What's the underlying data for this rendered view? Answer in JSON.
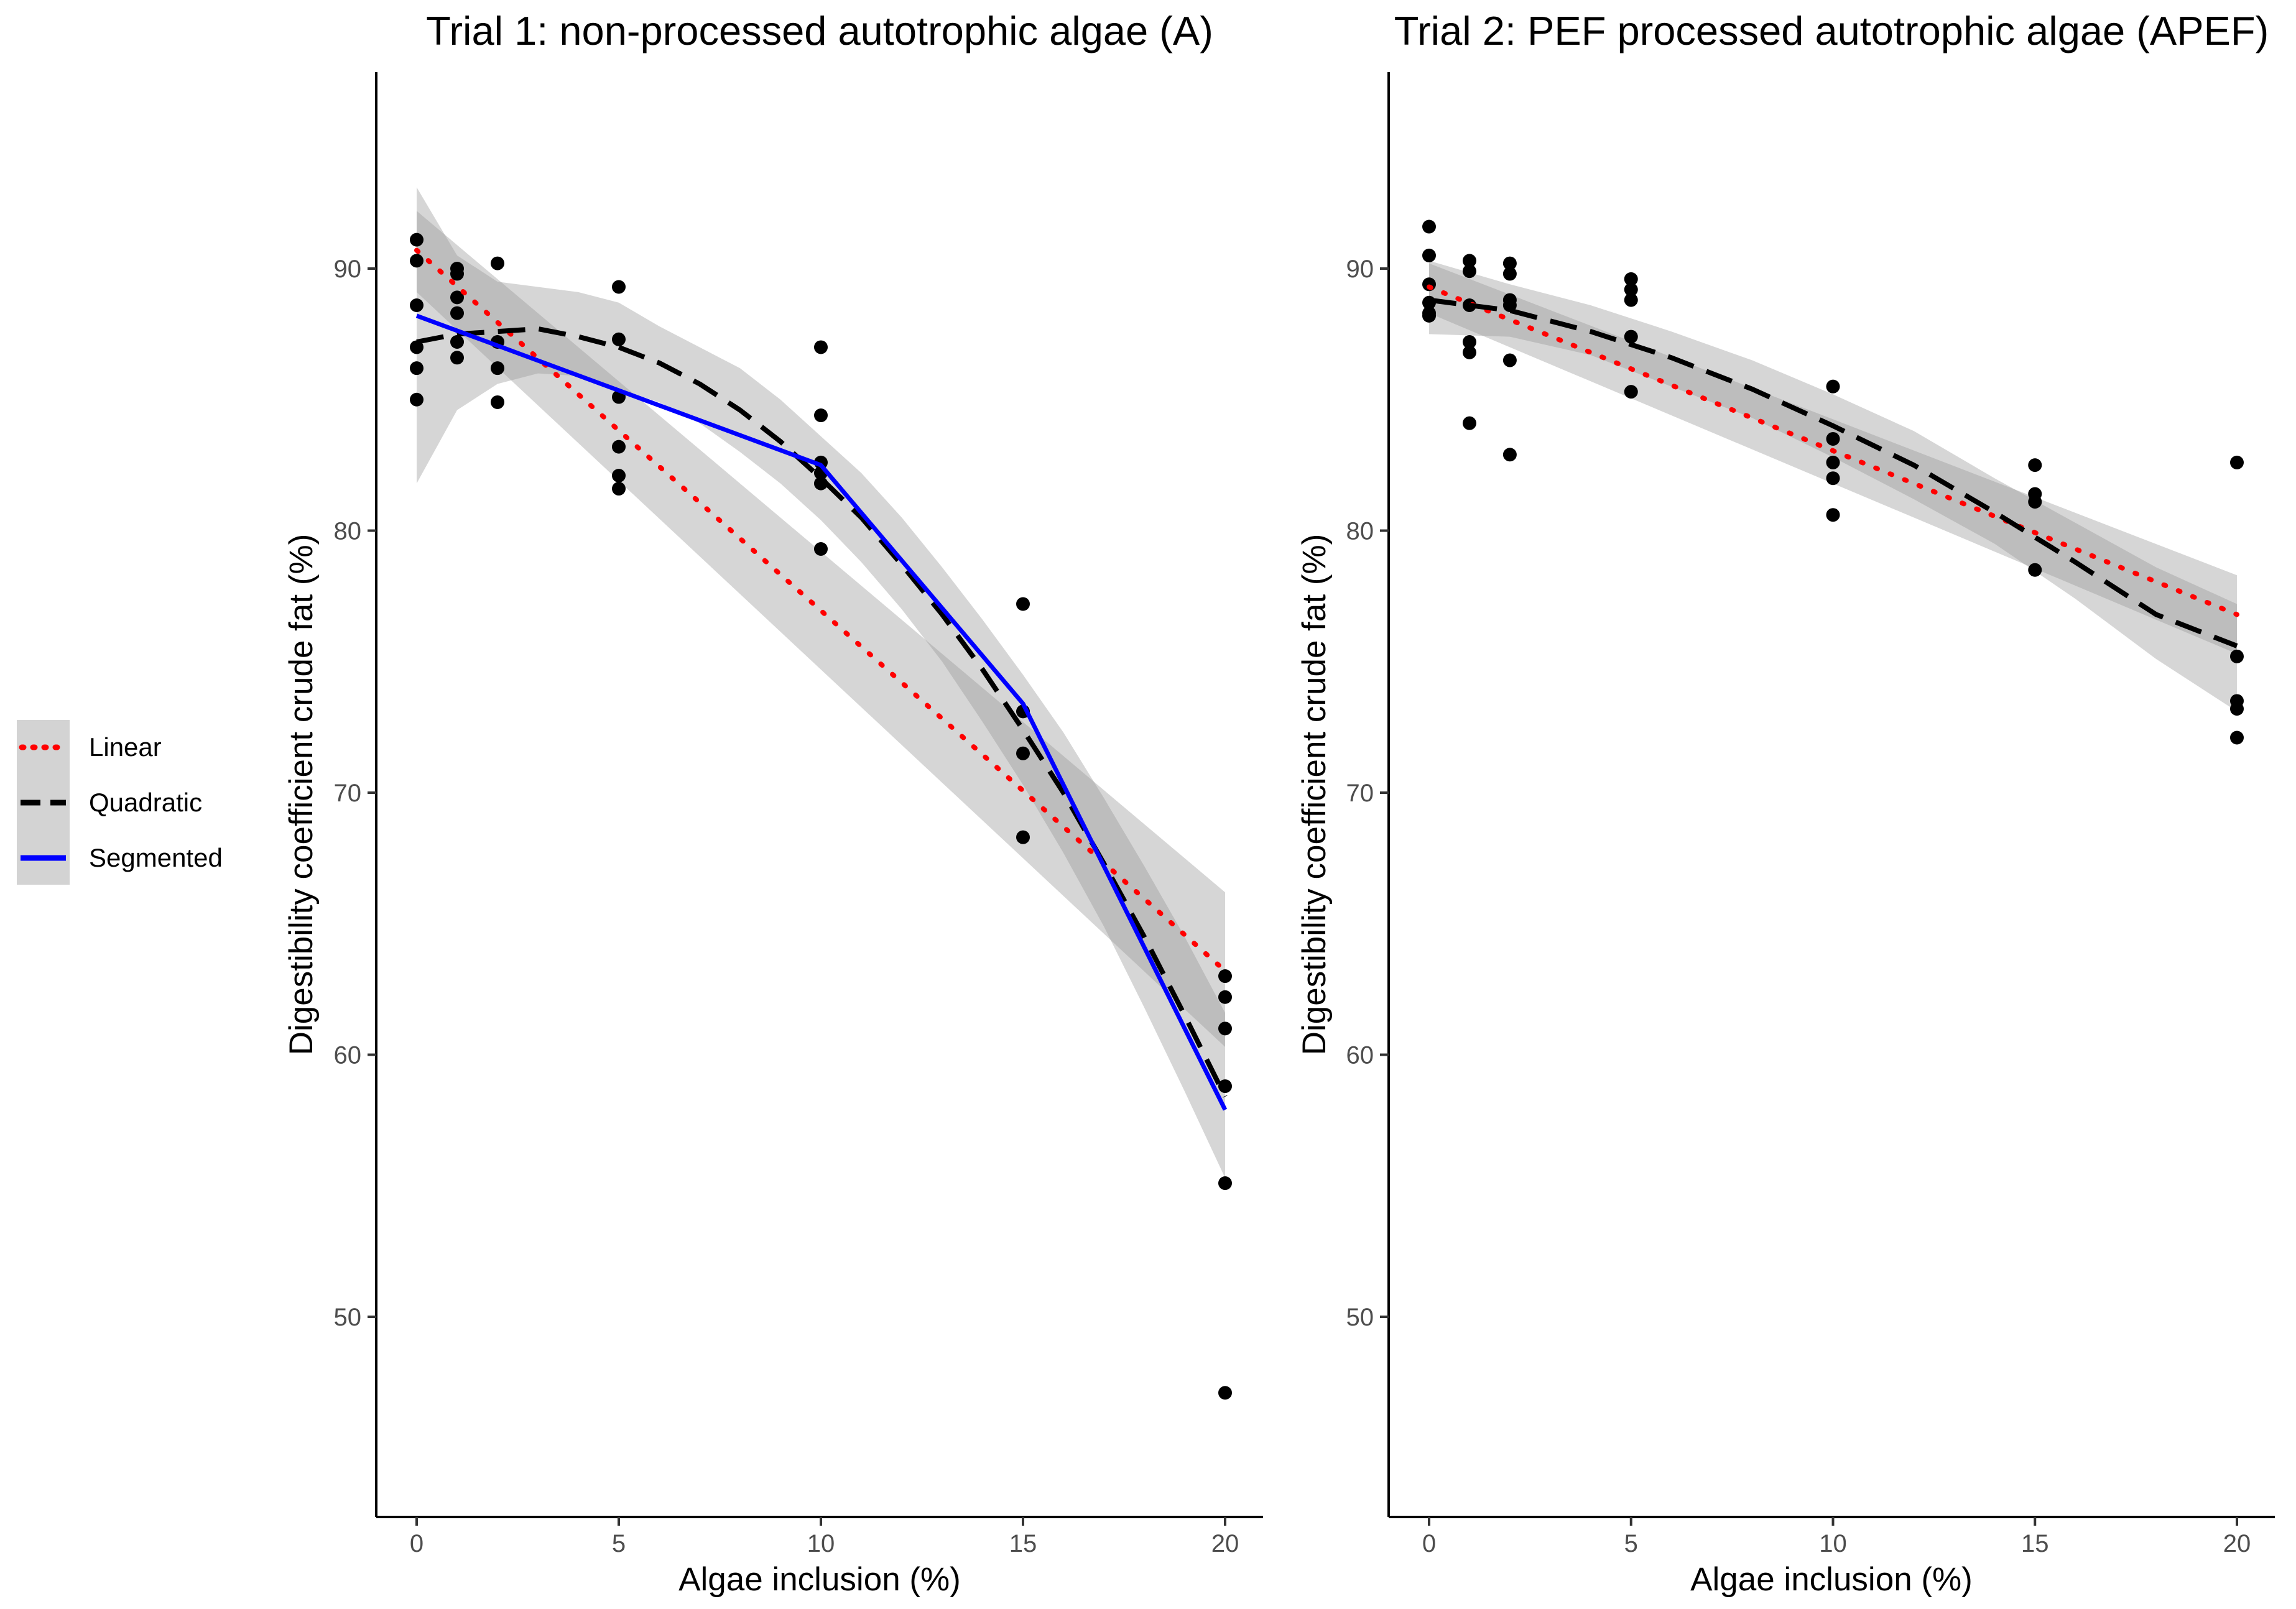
{
  "legend": {
    "items": [
      {
        "key": "linear",
        "label": "Linear",
        "color": "#ff0000"
      },
      {
        "key": "quadratic",
        "label": "Quadratic",
        "color": "#000000"
      },
      {
        "key": "segmented",
        "label": "Segmented",
        "color": "#0000ff"
      }
    ]
  },
  "chart_data": [
    {
      "type": "scatter",
      "title": "Trial 1: non-processed autotrophic algae (A)",
      "xlabel": "Algae inclusion (%)",
      "ylabel": "Digestibility coefficient crude fat (%)",
      "xlim": [
        -1,
        21
      ],
      "ylim": [
        43,
        97.5
      ],
      "xticks": [
        0,
        5,
        10,
        15,
        20
      ],
      "yticks": [
        50,
        60,
        70,
        80,
        90
      ],
      "points": [
        {
          "x": 0,
          "y": 91.1
        },
        {
          "x": 0,
          "y": 90.3
        },
        {
          "x": 0,
          "y": 88.6
        },
        {
          "x": 0,
          "y": 87.0
        },
        {
          "x": 0,
          "y": 86.2
        },
        {
          "x": 0,
          "y": 85.0
        },
        {
          "x": 1,
          "y": 90.0
        },
        {
          "x": 1,
          "y": 89.8
        },
        {
          "x": 1,
          "y": 88.9
        },
        {
          "x": 1,
          "y": 88.3
        },
        {
          "x": 1,
          "y": 87.2
        },
        {
          "x": 1,
          "y": 86.6
        },
        {
          "x": 2,
          "y": 90.2
        },
        {
          "x": 2,
          "y": 87.2
        },
        {
          "x": 2,
          "y": 86.2
        },
        {
          "x": 2,
          "y": 84.9
        },
        {
          "x": 5,
          "y": 89.3
        },
        {
          "x": 5,
          "y": 87.3
        },
        {
          "x": 5,
          "y": 85.1
        },
        {
          "x": 5,
          "y": 83.2
        },
        {
          "x": 5,
          "y": 82.1
        },
        {
          "x": 5,
          "y": 81.6
        },
        {
          "x": 10,
          "y": 87.0
        },
        {
          "x": 10,
          "y": 84.4
        },
        {
          "x": 10,
          "y": 82.6
        },
        {
          "x": 10,
          "y": 82.2
        },
        {
          "x": 10,
          "y": 81.8
        },
        {
          "x": 10,
          "y": 79.3
        },
        {
          "x": 15,
          "y": 77.2
        },
        {
          "x": 15,
          "y": 73.1
        },
        {
          "x": 15,
          "y": 71.5
        },
        {
          "x": 15,
          "y": 68.3
        },
        {
          "x": 20,
          "y": 63.0
        },
        {
          "x": 20,
          "y": 62.2
        },
        {
          "x": 20,
          "y": 61.0
        },
        {
          "x": 20,
          "y": 58.8
        },
        {
          "x": 20,
          "y": 55.1
        },
        {
          "x": 20,
          "y": 47.1
        }
      ],
      "fits": {
        "linear": {
          "x": [
            0,
            20
          ],
          "y": [
            90.7,
            63.2
          ],
          "band_low": [
            89.1,
            60.3
          ],
          "band_high": [
            92.2,
            66.2
          ]
        },
        "quadratic": {
          "x": [
            0,
            1,
            2,
            3,
            4,
            5,
            6,
            7,
            8,
            9,
            10,
            11,
            12,
            13,
            14,
            15,
            16,
            17,
            18,
            19,
            20
          ],
          "y": [
            87.2,
            87.5,
            87.6,
            87.7,
            87.4,
            87.0,
            86.4,
            85.6,
            84.6,
            83.4,
            82.0,
            80.5,
            78.7,
            76.8,
            74.7,
            72.4,
            70.0,
            67.3,
            64.5,
            61.5,
            58.4
          ],
          "band_low": [
            81.8,
            84.6,
            85.6,
            86.0,
            85.9,
            85.4,
            84.9,
            84.1,
            83.0,
            81.8,
            80.4,
            78.8,
            77.0,
            75.0,
            72.7,
            70.3,
            67.7,
            64.9,
            61.8,
            58.6,
            55.3
          ],
          "band_high": [
            93.1,
            90.5,
            89.5,
            89.3,
            89.1,
            88.7,
            87.8,
            87.0,
            86.2,
            85.0,
            83.6,
            82.2,
            80.5,
            78.6,
            76.6,
            74.5,
            72.3,
            69.8,
            67.2,
            64.5,
            61.6
          ]
        },
        "segmented": {
          "x": [
            0,
            10,
            15,
            20
          ],
          "y": [
            88.2,
            82.5,
            73.4,
            57.9
          ]
        }
      }
    },
    {
      "type": "scatter",
      "title": "Trial 2: PEF processed autotrophic algae (APEF)",
      "xlabel": "Algae inclusion (%)",
      "ylabel": "Digestibility coefficient crude fat (%)",
      "xlim": [
        -1,
        21
      ],
      "ylim": [
        43,
        97.5
      ],
      "xticks": [
        0,
        5,
        10,
        15,
        20
      ],
      "yticks": [
        50,
        60,
        70,
        80,
        90
      ],
      "points": [
        {
          "x": 0,
          "y": 91.6
        },
        {
          "x": 0,
          "y": 90.5
        },
        {
          "x": 0,
          "y": 89.4
        },
        {
          "x": 0,
          "y": 88.7
        },
        {
          "x": 0,
          "y": 88.3
        },
        {
          "x": 0,
          "y": 88.2
        },
        {
          "x": 1,
          "y": 90.3
        },
        {
          "x": 1,
          "y": 89.9
        },
        {
          "x": 1,
          "y": 88.6
        },
        {
          "x": 1,
          "y": 87.2
        },
        {
          "x": 1,
          "y": 86.8
        },
        {
          "x": 1,
          "y": 84.1
        },
        {
          "x": 2,
          "y": 90.2
        },
        {
          "x": 2,
          "y": 89.8
        },
        {
          "x": 2,
          "y": 88.8
        },
        {
          "x": 2,
          "y": 88.6
        },
        {
          "x": 2,
          "y": 86.5
        },
        {
          "x": 2,
          "y": 82.9
        },
        {
          "x": 5,
          "y": 89.6
        },
        {
          "x": 5,
          "y": 89.2
        },
        {
          "x": 5,
          "y": 88.8
        },
        {
          "x": 5,
          "y": 87.4
        },
        {
          "x": 5,
          "y": 85.3
        },
        {
          "x": 10,
          "y": 85.5
        },
        {
          "x": 10,
          "y": 83.5
        },
        {
          "x": 10,
          "y": 82.6
        },
        {
          "x": 10,
          "y": 82.0
        },
        {
          "x": 10,
          "y": 80.6
        },
        {
          "x": 15,
          "y": 82.5
        },
        {
          "x": 15,
          "y": 81.4
        },
        {
          "x": 15,
          "y": 81.1
        },
        {
          "x": 15,
          "y": 78.5
        },
        {
          "x": 20,
          "y": 82.6
        },
        {
          "x": 20,
          "y": 75.2
        },
        {
          "x": 20,
          "y": 73.5
        },
        {
          "x": 20,
          "y": 73.2
        },
        {
          "x": 20,
          "y": 72.1
        }
      ],
      "fits": {
        "linear": {
          "x": [
            0,
            20
          ],
          "y": [
            89.3,
            76.8
          ],
          "band_low": [
            88.3,
            75.3
          ],
          "band_high": [
            90.2,
            78.3
          ]
        },
        "quadratic": {
          "x": [
            0,
            2,
            4,
            6,
            8,
            10,
            12,
            14,
            16,
            18,
            20
          ],
          "y": [
            88.8,
            88.4,
            87.6,
            86.6,
            85.4,
            84.0,
            82.5,
            80.7,
            78.8,
            76.8,
            75.6
          ],
          "band_low": [
            87.5,
            87.4,
            86.7,
            85.5,
            84.3,
            82.8,
            81.2,
            79.5,
            77.4,
            75.1,
            73.1
          ],
          "band_high": [
            90.3,
            89.4,
            88.6,
            87.6,
            86.5,
            85.2,
            83.8,
            82.0,
            80.3,
            78.6,
            77.2
          ]
        }
      }
    }
  ]
}
